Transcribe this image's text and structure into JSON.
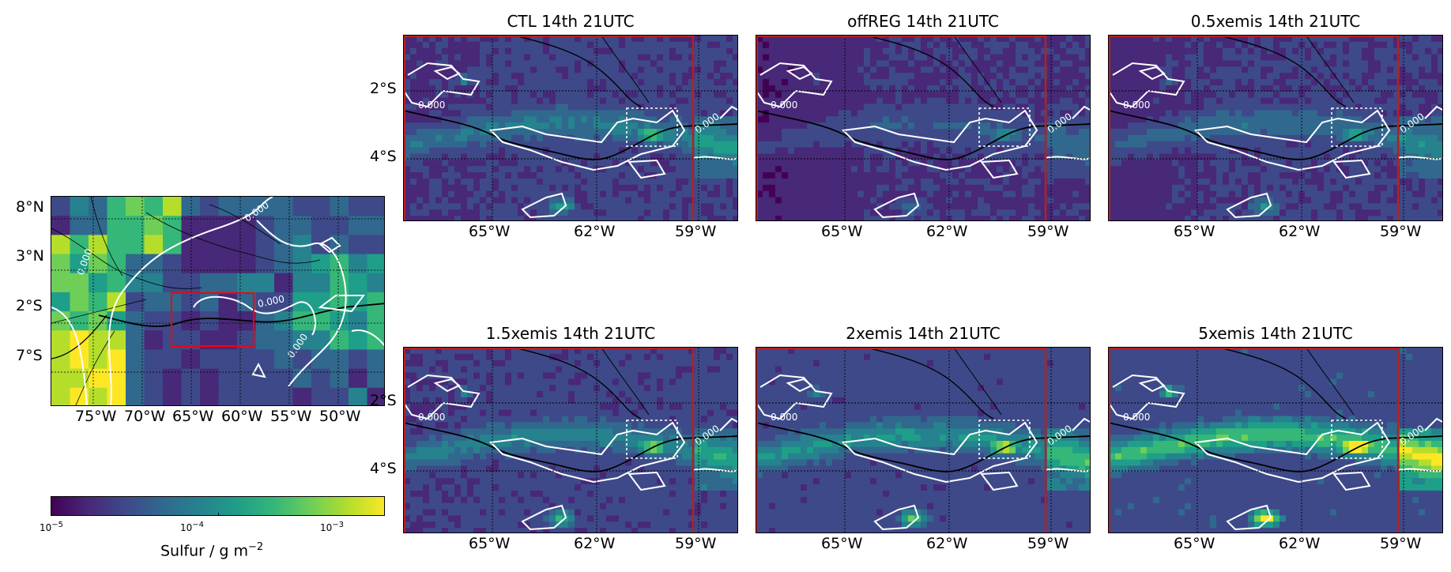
{
  "overview": {
    "lat_labels": [
      "8°N",
      "3°N",
      "2°S",
      "7°S"
    ],
    "lon_labels": [
      "75°W",
      "70°W",
      "65°W",
      "60°W",
      "55°W",
      "50°W"
    ],
    "contour_labels": [
      "0.000",
      "0.000",
      "0.000",
      "0.000"
    ]
  },
  "panels": [
    {
      "title": "CTL 14th 21UTC",
      "intensity": 1.0
    },
    {
      "title": "offREG 14th 21UTC",
      "intensity": 0.6
    },
    {
      "title": "0.5xemis 14th 21UTC",
      "intensity": 0.85
    },
    {
      "title": "1.5xemis 14th 21UTC",
      "intensity": 1.1
    },
    {
      "title": "2xemis 14th 21UTC",
      "intensity": 1.25
    },
    {
      "title": "5xemis 14th 21UTC",
      "intensity": 1.7
    }
  ],
  "panel_axes": {
    "lat_labels": [
      "2°S",
      "4°S"
    ],
    "lon_labels": [
      "65°W",
      "62°W",
      "59°W"
    ],
    "contour_labels": [
      "0.000",
      "0.000"
    ]
  },
  "colorbar": {
    "tick_labels": [
      "10",
      "10",
      "10"
    ],
    "tick_exponents": [
      "−5",
      "−4",
      "−3"
    ],
    "label": "Sulfur / g m",
    "label_exponent": "−2"
  },
  "colors": {
    "viridis": [
      "#440154",
      "#482878",
      "#3e4989",
      "#31688e",
      "#26828e",
      "#1f9e89",
      "#35b779",
      "#6ece58",
      "#b5de2b",
      "#fde725"
    ],
    "contour": "#ffffff",
    "highlight_box": "#ff0000",
    "boundary_line": "#b22222"
  }
}
